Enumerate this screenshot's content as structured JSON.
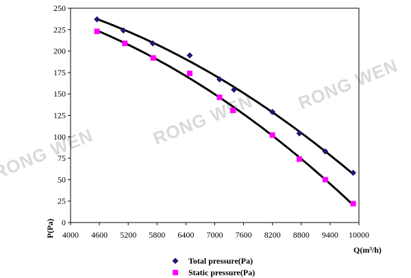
{
  "chart_data": {
    "type": "scatter",
    "title": "",
    "xlabel": "Q(m³/h)",
    "ylabel": "P(Pa)",
    "xlim": [
      4000,
      10000
    ],
    "ylim": [
      0,
      250
    ],
    "x_ticks": [
      "4000",
      "4600",
      "5200",
      "5800",
      "6400",
      "7000",
      "7600",
      "8200",
      "8800",
      "9400",
      "10000"
    ],
    "y_ticks": [
      "0",
      "25",
      "50",
      "75",
      "100",
      "125",
      "150",
      "175",
      "200",
      "225",
      "250"
    ],
    "grid": false,
    "legend_position": "bottom",
    "trend_lines": true,
    "watermark": "RONG WEN",
    "series": [
      {
        "name": "Total pressure(Pa)",
        "marker": "diamond",
        "color": "#1a1a6e",
        "points": [
          [
            4550,
            237
          ],
          [
            5100,
            224
          ],
          [
            5710,
            209
          ],
          [
            6480,
            195
          ],
          [
            7100,
            167
          ],
          [
            7400,
            155
          ],
          [
            8200,
            129
          ],
          [
            8760,
            104
          ],
          [
            9300,
            83
          ],
          [
            9880,
            58
          ]
        ]
      },
      {
        "name": "Static pressure(Pa)",
        "marker": "square",
        "color": "#ff00ff",
        "points": [
          [
            4550,
            223
          ],
          [
            5130,
            209
          ],
          [
            5720,
            192
          ],
          [
            6480,
            174
          ],
          [
            7100,
            146
          ],
          [
            7380,
            131
          ],
          [
            8200,
            102
          ],
          [
            8760,
            74
          ],
          [
            9300,
            50
          ],
          [
            9880,
            22
          ]
        ]
      }
    ]
  }
}
